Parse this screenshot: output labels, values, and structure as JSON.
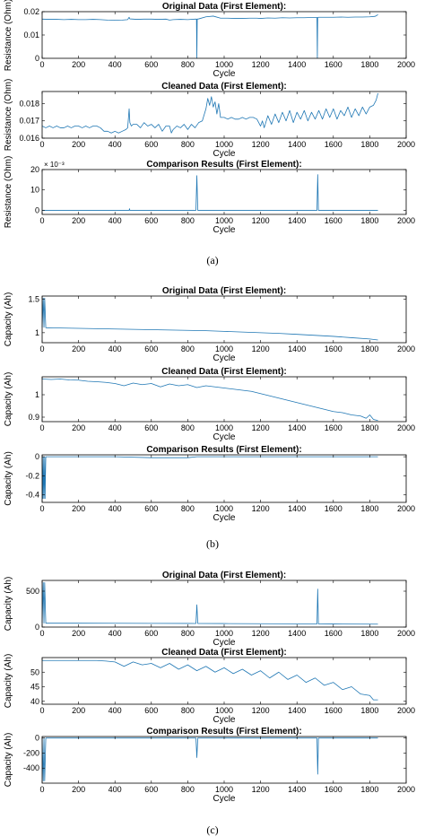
{
  "panels": [
    {
      "label": "(a)"
    },
    {
      "label": "(b)"
    },
    {
      "label": "(c)"
    }
  ],
  "chart_data": [
    {
      "type": "line",
      "title": "Original Data (First Element):",
      "xlabel": "Cycle",
      "ylabel": "Resistance (Ohm)",
      "xlim": [
        0,
        2000
      ],
      "ylim": [
        0,
        0.02
      ],
      "xticks": [
        "0",
        "200",
        "400",
        "600",
        "800",
        "1000",
        "1200",
        "1400",
        "1600",
        "1800",
        "2000"
      ],
      "yticks": [
        "0",
        "0.01",
        "0.02"
      ],
      "ytick_values": [
        0,
        0.01,
        0.02
      ],
      "grid": false,
      "series": [
        {
          "color": "#1f77b4",
          "x": [
            0,
            40,
            80,
            120,
            160,
            200,
            240,
            280,
            320,
            360,
            400,
            440,
            470,
            478,
            482,
            520,
            560,
            600,
            640,
            680,
            700,
            720,
            760,
            800,
            840,
            848,
            850,
            852,
            860,
            900,
            940,
            980,
            1020,
            1060,
            1100,
            1140,
            1180,
            1200,
            1240,
            1280,
            1320,
            1360,
            1400,
            1440,
            1480,
            1510,
            1512,
            1514,
            1520,
            1560,
            1600,
            1640,
            1680,
            1720,
            1760,
            1800,
            1830,
            1845
          ],
          "y": [
            0.0168,
            0.0167,
            0.0167,
            0.0166,
            0.0167,
            0.0166,
            0.0166,
            0.0167,
            0.0166,
            0.0164,
            0.0163,
            0.0164,
            0.0166,
            0.0176,
            0.0169,
            0.0167,
            0.0168,
            0.0168,
            0.0167,
            0.0168,
            0.0164,
            0.0166,
            0.0167,
            0.0166,
            0.0168,
            0.0168,
            0.0,
            0.0168,
            0.0169,
            0.0178,
            0.0181,
            0.0172,
            0.0172,
            0.0171,
            0.0171,
            0.0172,
            0.0172,
            0.0171,
            0.0173,
            0.0172,
            0.0174,
            0.0173,
            0.0174,
            0.0174,
            0.0175,
            0.0175,
            0.0001,
            0.0175,
            0.0176,
            0.0176,
            0.0176,
            0.0177,
            0.0176,
            0.0177,
            0.0177,
            0.0178,
            0.018,
            0.0187
          ]
        }
      ]
    },
    {
      "type": "line",
      "title": "Cleaned Data (First Element):",
      "xlabel": "Cycle",
      "ylabel": "Resistance (Ohm)",
      "xlim": [
        0,
        2000
      ],
      "ylim": [
        0.016,
        0.0187
      ],
      "xticks": [
        "0",
        "200",
        "400",
        "600",
        "800",
        "1000",
        "1200",
        "1400",
        "1600",
        "1800",
        "2000"
      ],
      "yticks": [
        "0.016",
        "0.017",
        "0.018"
      ],
      "ytick_values": [
        0.016,
        0.017,
        0.018
      ],
      "grid": false,
      "series": [
        {
          "color": "#1f77b4",
          "x": [
            0,
            20,
            40,
            60,
            80,
            100,
            120,
            140,
            160,
            180,
            200,
            220,
            240,
            260,
            280,
            300,
            320,
            340,
            360,
            380,
            400,
            420,
            440,
            460,
            470,
            478,
            482,
            490,
            500,
            520,
            540,
            560,
            580,
            600,
            620,
            640,
            660,
            680,
            700,
            710,
            720,
            740,
            760,
            780,
            800,
            820,
            840,
            860,
            880,
            900,
            910,
            920,
            930,
            940,
            950,
            960,
            970,
            980,
            1000,
            1020,
            1040,
            1060,
            1080,
            1100,
            1120,
            1140,
            1160,
            1180,
            1200,
            1210,
            1220,
            1240,
            1260,
            1280,
            1300,
            1320,
            1340,
            1360,
            1380,
            1400,
            1420,
            1440,
            1460,
            1480,
            1500,
            1520,
            1540,
            1560,
            1580,
            1600,
            1620,
            1640,
            1660,
            1680,
            1700,
            1720,
            1740,
            1760,
            1780,
            1800,
            1820,
            1835,
            1845
          ],
          "y": [
            0.0167,
            0.0166,
            0.0167,
            0.0166,
            0.0167,
            0.0166,
            0.0166,
            0.0167,
            0.0166,
            0.0167,
            0.0167,
            0.0166,
            0.0167,
            0.0166,
            0.0167,
            0.0167,
            0.0166,
            0.0164,
            0.0164,
            0.0163,
            0.0164,
            0.0163,
            0.0164,
            0.0165,
            0.0166,
            0.0177,
            0.0169,
            0.0167,
            0.0168,
            0.0168,
            0.0166,
            0.0169,
            0.0167,
            0.0168,
            0.0166,
            0.0168,
            0.0164,
            0.0167,
            0.0167,
            0.0163,
            0.0165,
            0.0167,
            0.0166,
            0.0168,
            0.0165,
            0.0168,
            0.0166,
            0.0169,
            0.017,
            0.0177,
            0.0183,
            0.0179,
            0.0184,
            0.0178,
            0.0181,
            0.0174,
            0.018,
            0.0172,
            0.0172,
            0.0171,
            0.0172,
            0.0171,
            0.0171,
            0.0172,
            0.0171,
            0.0172,
            0.0172,
            0.0171,
            0.0167,
            0.017,
            0.0166,
            0.0173,
            0.0168,
            0.0174,
            0.0169,
            0.0175,
            0.017,
            0.0176,
            0.0169,
            0.0175,
            0.0171,
            0.0176,
            0.017,
            0.0175,
            0.0171,
            0.0176,
            0.0171,
            0.0177,
            0.0172,
            0.0177,
            0.0171,
            0.0176,
            0.0173,
            0.0178,
            0.0172,
            0.0177,
            0.0173,
            0.0178,
            0.0174,
            0.0178,
            0.0179,
            0.0182,
            0.0186
          ]
        }
      ]
    },
    {
      "type": "line",
      "title": "Comparison Results (First Element):",
      "xlabel": "Cycle",
      "ylabel": "Resistance (Ohm)",
      "xlim": [
        0,
        2000
      ],
      "ylim": [
        -2,
        20
      ],
      "exponent_label": "× 10⁻³",
      "xticks": [
        "0",
        "200",
        "400",
        "600",
        "800",
        "1000",
        "1200",
        "1400",
        "1600",
        "1800",
        "2000"
      ],
      "yticks": [
        "0",
        "10",
        "20"
      ],
      "ytick_values": [
        0,
        10,
        20
      ],
      "grid": false,
      "series": [
        {
          "color": "#1f77b4",
          "x": [
            0,
            200,
            400,
            478,
            480,
            482,
            600,
            800,
            845,
            850,
            855,
            1000,
            1200,
            1400,
            1510,
            1514,
            1518,
            1700,
            1845
          ],
          "y": [
            0,
            0,
            0,
            0,
            0.8,
            0,
            0,
            0,
            0,
            17,
            0,
            0,
            0,
            0,
            0,
            17.5,
            0,
            0,
            0
          ]
        }
      ]
    },
    {
      "type": "line",
      "title": "Original Data (First Element):",
      "xlabel": "Cycle",
      "ylabel": "Capacity (Ah)",
      "xlim": [
        0,
        2000
      ],
      "ylim": [
        0.85,
        1.55
      ],
      "xticks": [
        "0",
        "200",
        "400",
        "600",
        "800",
        "1000",
        "1200",
        "1400",
        "1600",
        "1800",
        "2000"
      ],
      "yticks": [
        "1",
        "1.5"
      ],
      "ytick_values": [
        1,
        1.5
      ],
      "grid": false,
      "series": [
        {
          "color": "#1f77b4",
          "x": [
            0,
            6,
            10,
            14,
            20,
            60,
            100,
            200,
            300,
            400,
            500,
            600,
            700,
            800,
            900,
            1000,
            1100,
            1200,
            1300,
            1400,
            1500,
            1600,
            1700,
            1800,
            1845
          ],
          "y": [
            1.08,
            1.52,
            1.08,
            1.52,
            1.075,
            1.07,
            1.07,
            1.065,
            1.06,
            1.055,
            1.05,
            1.045,
            1.04,
            1.035,
            1.03,
            1.02,
            1.01,
            1.0,
            0.99,
            0.975,
            0.96,
            0.945,
            0.925,
            0.905,
            0.89
          ]
        }
      ]
    },
    {
      "type": "line",
      "title": "Cleaned Data (First Element):",
      "xlabel": "Cycle",
      "ylabel": "Capacity (Ah)",
      "xlim": [
        0,
        2000
      ],
      "ylim": [
        0.88,
        1.08
      ],
      "xticks": [
        "0",
        "200",
        "400",
        "600",
        "800",
        "1000",
        "1200",
        "1400",
        "1600",
        "1800",
        "2000"
      ],
      "yticks": [
        "0.9",
        "1"
      ],
      "ytick_values": [
        0.9,
        1
      ],
      "grid": false,
      "series": [
        {
          "color": "#1f77b4",
          "x": [
            0,
            50,
            100,
            150,
            200,
            250,
            300,
            350,
            400,
            450,
            500,
            550,
            600,
            650,
            700,
            750,
            800,
            850,
            900,
            950,
            1000,
            1050,
            1100,
            1150,
            1200,
            1250,
            1300,
            1350,
            1400,
            1450,
            1500,
            1550,
            1600,
            1650,
            1700,
            1750,
            1780,
            1800,
            1820,
            1845
          ],
          "y": [
            1.07,
            1.068,
            1.07,
            1.066,
            1.065,
            1.06,
            1.058,
            1.055,
            1.05,
            1.04,
            1.052,
            1.045,
            1.05,
            1.035,
            1.048,
            1.04,
            1.045,
            1.032,
            1.04,
            1.035,
            1.03,
            1.025,
            1.02,
            1.015,
            1.005,
            0.995,
            0.985,
            0.975,
            0.965,
            0.955,
            0.945,
            0.935,
            0.925,
            0.92,
            0.91,
            0.905,
            0.895,
            0.91,
            0.89,
            0.885
          ]
        }
      ]
    },
    {
      "type": "line",
      "title": "Comparison Results (First Element):",
      "xlabel": "Cycle",
      "ylabel": "Capacity (Ah)",
      "xlim": [
        0,
        2000
      ],
      "ylim": [
        -0.48,
        0.02
      ],
      "xticks": [
        "0",
        "200",
        "400",
        "600",
        "800",
        "1000",
        "1200",
        "1400",
        "1600",
        "1800",
        "2000"
      ],
      "yticks": [
        "-0.4",
        "-0.2",
        "0"
      ],
      "ytick_values": [
        -0.4,
        -0.2,
        0
      ],
      "grid": false,
      "series": [
        {
          "color": "#1f77b4",
          "x": [
            0,
            4,
            6,
            10,
            14,
            16,
            20,
            200,
            400,
            600,
            800,
            850,
            1000,
            1200,
            1400,
            1600,
            1845
          ],
          "y": [
            0,
            -0.44,
            0,
            -0.44,
            0,
            -0.44,
            0,
            0,
            0,
            -0.01,
            -0.01,
            0,
            0,
            0,
            0,
            0,
            0
          ]
        }
      ]
    },
    {
      "type": "line",
      "title": "Original Data (First Element):",
      "xlabel": "Cycle",
      "ylabel": "Capacity (Ah)",
      "xlim": [
        0,
        2000
      ],
      "ylim": [
        0,
        650
      ],
      "xticks": [
        "0",
        "200",
        "400",
        "600",
        "800",
        "1000",
        "1200",
        "1400",
        "1600",
        "1800",
        "2000"
      ],
      "yticks": [
        "0",
        "500"
      ],
      "ytick_values": [
        0,
        500
      ],
      "grid": false,
      "series": [
        {
          "color": "#1f77b4",
          "x": [
            0,
            6,
            10,
            14,
            20,
            200,
            400,
            600,
            800,
            845,
            850,
            855,
            1000,
            1200,
            1400,
            1510,
            1514,
            1518,
            1600,
            1845
          ],
          "y": [
            54,
            620,
            54,
            620,
            54,
            54,
            53,
            52,
            51,
            50,
            310,
            50,
            49,
            47,
            45,
            44,
            530,
            44,
            43,
            41
          ]
        }
      ]
    },
    {
      "type": "line",
      "title": "Cleaned Data (First Element):",
      "xlabel": "Cycle",
      "ylabel": "Capacity (Ah)",
      "xlim": [
        0,
        2000
      ],
      "ylim": [
        39,
        55
      ],
      "xticks": [
        "0",
        "200",
        "400",
        "600",
        "800",
        "1000",
        "1200",
        "1400",
        "1600",
        "1800",
        "2000"
      ],
      "yticks": [
        "40",
        "45",
        "50"
      ],
      "ytick_values": [
        40,
        45,
        50
      ],
      "grid": false,
      "series": [
        {
          "color": "#1f77b4",
          "x": [
            0,
            50,
            100,
            150,
            200,
            250,
            300,
            350,
            400,
            450,
            500,
            550,
            600,
            650,
            700,
            750,
            800,
            850,
            900,
            950,
            1000,
            1050,
            1100,
            1150,
            1200,
            1250,
            1300,
            1350,
            1400,
            1450,
            1500,
            1550,
            1600,
            1650,
            1700,
            1750,
            1800,
            1820,
            1845
          ],
          "y": [
            54,
            54,
            54,
            54,
            54,
            54,
            54,
            53.8,
            53.5,
            52,
            53.5,
            52.5,
            53,
            51.5,
            53,
            51,
            52.5,
            50.5,
            52,
            50,
            51.5,
            49.5,
            51,
            49,
            50.5,
            48,
            50,
            47.5,
            49,
            46.5,
            48,
            45.5,
            46.5,
            44,
            45,
            42.5,
            42,
            40.5,
            40.5
          ]
        }
      ]
    },
    {
      "type": "line",
      "title": "Comparison Results (First Element):",
      "xlabel": "Cycle",
      "ylabel": "Capacity (Ah)",
      "xlim": [
        0,
        2000
      ],
      "ylim": [
        -600,
        20
      ],
      "xticks": [
        "0",
        "200",
        "400",
        "600",
        "800",
        "1000",
        "1200",
        "1400",
        "1600",
        "1800",
        "2000"
      ],
      "yticks": [
        "-400",
        "-200",
        "0"
      ],
      "ytick_values": [
        -400,
        -200,
        0
      ],
      "grid": false,
      "series": [
        {
          "color": "#1f77b4",
          "x": [
            0,
            6,
            10,
            14,
            20,
            200,
            400,
            600,
            800,
            845,
            850,
            855,
            1000,
            1200,
            1400,
            1510,
            1514,
            1518,
            1600,
            1845
          ],
          "y": [
            0,
            -570,
            0,
            -570,
            0,
            0,
            0,
            0,
            0,
            0,
            -260,
            0,
            0,
            0,
            0,
            0,
            -480,
            0,
            0,
            0
          ]
        }
      ]
    }
  ]
}
